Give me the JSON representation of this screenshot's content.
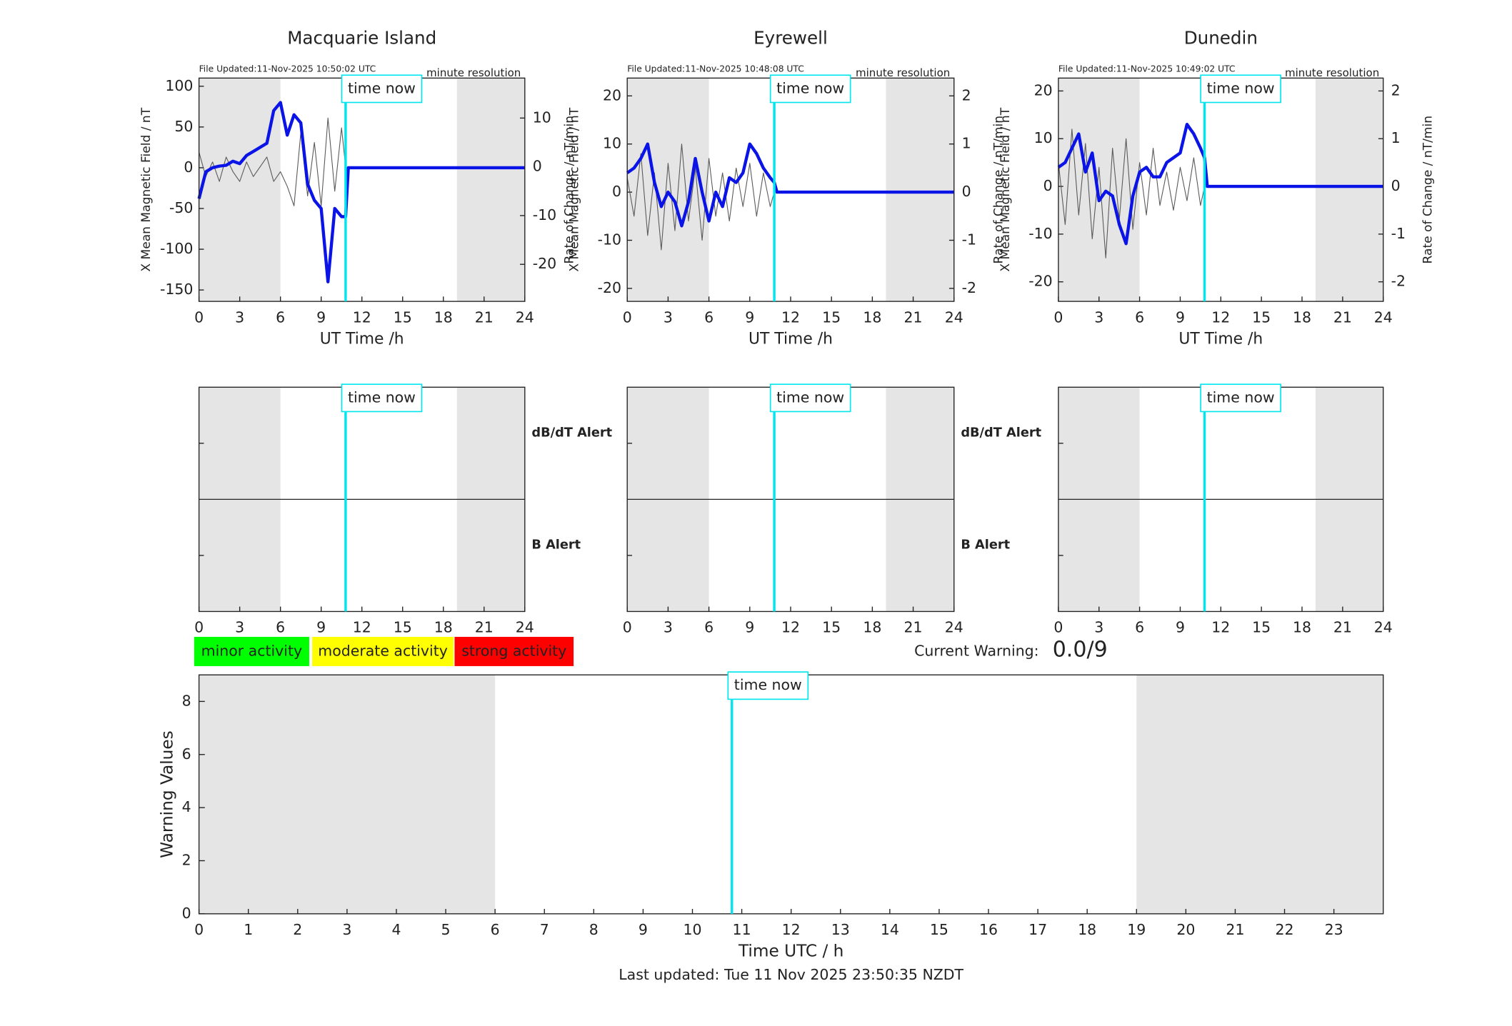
{
  "chart_data": [
    {
      "type": "line",
      "title": "Macquarie Island",
      "subtitle": "File Updated:11-Nov-2025 10:50:02 UTC",
      "note": "minute resolution",
      "xlabel": "UT Time /h",
      "ylabel": "X Mean Magnetic Field / nT",
      "y2label": "Rate of Change / nT/min",
      "xlim": [
        0,
        24
      ],
      "xticks": [
        0,
        3,
        6,
        9,
        12,
        15,
        18,
        21,
        24
      ],
      "ylim": [
        -164,
        110
      ],
      "yticks": [
        -150,
        -100,
        -50,
        0,
        50,
        100
      ],
      "y2lim": [
        -27.6,
        18.2
      ],
      "y2ticks": [
        -20,
        -10,
        0,
        10
      ],
      "shaded": [
        [
          0,
          6
        ],
        [
          19,
          24
        ]
      ],
      "time_now": 10.8,
      "time_now_label": "time now",
      "x": [
        0,
        0.5,
        1,
        1.5,
        2,
        2.5,
        3,
        3.5,
        4,
        4.5,
        5,
        5.5,
        6,
        6.5,
        7,
        7.5,
        8,
        8.5,
        9,
        9.5,
        10,
        10.5,
        10.8,
        11,
        24
      ],
      "series": [
        {
          "color": "#5a5a5a",
          "axis": "y2",
          "values": [
            3,
            -2,
            1,
            -3,
            2,
            -1,
            -3,
            1,
            -2,
            0,
            2,
            -3,
            -1,
            -4,
            -8,
            7,
            -6,
            5,
            -8,
            10,
            -5,
            8,
            0,
            null,
            null
          ]
        },
        {
          "color": "#0a14e6",
          "values": [
            -38,
            -5,
            0,
            2,
            3,
            8,
            5,
            15,
            20,
            25,
            30,
            70,
            80,
            40,
            65,
            55,
            -20,
            -40,
            -50,
            -140,
            -50,
            -60,
            -60,
            0,
            0
          ]
        }
      ]
    },
    {
      "type": "line",
      "title": "Eyrewell",
      "subtitle": "File Updated:11-Nov-2025 10:48:08 UTC",
      "note": "minute resolution",
      "xlabel": "UT Time /h",
      "ylabel": "X Mean Magnetic Field / nT",
      "y2label": "Rate of Change / nT/min",
      "xlim": [
        0,
        24
      ],
      "xticks": [
        0,
        3,
        6,
        9,
        12,
        15,
        18,
        21,
        24
      ],
      "ylim": [
        -22.7,
        23.7
      ],
      "yticks": [
        -20,
        -10,
        0,
        10,
        20
      ],
      "y2lim": [
        -2.27,
        2.37
      ],
      "y2ticks": [
        -2,
        -1,
        0,
        1,
        2
      ],
      "shaded": [
        [
          0,
          6
        ],
        [
          19,
          24
        ]
      ],
      "time_now": 10.8,
      "time_now_label": "time now",
      "x": [
        0,
        0.5,
        1,
        1.5,
        2,
        2.5,
        3,
        3.5,
        4,
        4.5,
        5,
        5.5,
        6,
        6.5,
        7,
        7.5,
        8,
        8.5,
        9,
        9.5,
        10,
        10.5,
        10.8,
        11,
        24
      ],
      "series": [
        {
          "color": "#5a5a5a",
          "axis": "y2",
          "values": [
            0.3,
            -0.5,
            0.8,
            -0.9,
            0.4,
            -1.2,
            0.6,
            -0.8,
            1,
            -0.6,
            0.5,
            -1,
            0.7,
            -0.5,
            0.4,
            -0.6,
            0.5,
            -0.3,
            0.6,
            -0.5,
            0.4,
            -0.3,
            0,
            null,
            null
          ]
        },
        {
          "color": "#0a14e6",
          "values": [
            4,
            5,
            7,
            10,
            2,
            -3,
            0,
            -2,
            -7,
            -2,
            7,
            0,
            -6,
            0,
            -3,
            3,
            2,
            4,
            10,
            8,
            5,
            3,
            2,
            0,
            0
          ]
        }
      ]
    },
    {
      "type": "line",
      "title": "Dunedin",
      "subtitle": "File Updated:11-Nov-2025 10:49:02 UTC",
      "note": "minute resolution",
      "xlabel": "UT Time /h",
      "ylabel": "X Mean Magnetic Field / nT",
      "y2label": "Rate of Change / nT/min",
      "xlim": [
        0,
        24
      ],
      "xticks": [
        0,
        3,
        6,
        9,
        12,
        15,
        18,
        21,
        24
      ],
      "ylim": [
        -24.1,
        22.7
      ],
      "yticks": [
        -20,
        -10,
        0,
        10,
        20
      ],
      "y2lim": [
        -2.41,
        2.27
      ],
      "y2ticks": [
        -2,
        -1,
        0,
        1,
        2
      ],
      "shaded": [
        [
          0,
          6
        ],
        [
          19,
          24
        ]
      ],
      "time_now": 10.8,
      "time_now_label": "time now",
      "x": [
        0,
        0.5,
        1,
        1.5,
        2,
        2.5,
        3,
        3.5,
        4,
        4.5,
        5,
        5.5,
        6,
        6.5,
        7,
        7.5,
        8,
        8.5,
        9,
        9.5,
        10,
        10.5,
        10.8,
        11,
        24
      ],
      "series": [
        {
          "color": "#5a5a5a",
          "axis": "y2",
          "values": [
            0.5,
            -0.8,
            1.2,
            -0.6,
            0.9,
            -1.1,
            0.4,
            -1.5,
            0.8,
            -0.7,
            1,
            -0.9,
            0.5,
            -0.6,
            0.8,
            -0.4,
            0.3,
            -0.5,
            0.4,
            -0.3,
            0.6,
            -0.4,
            0,
            null,
            null
          ]
        },
        {
          "color": "#0a14e6",
          "values": [
            4,
            5,
            8,
            11,
            3,
            7,
            -3,
            -1,
            -2,
            -8,
            -12,
            -2,
            3,
            4,
            2,
            2,
            5,
            6,
            7,
            13,
            11,
            8,
            6,
            0,
            0
          ]
        }
      ]
    },
    {
      "type": "alert",
      "xlim": [
        0,
        24
      ],
      "xticks": [
        0,
        3,
        6,
        9,
        12,
        15,
        18,
        21,
        24
      ],
      "shaded": [
        [
          0,
          6
        ],
        [
          19,
          24
        ]
      ],
      "time_now": 10.8,
      "time_now_label": "time now",
      "upper_label": "dB/dT Alert",
      "lower_label": "B Alert",
      "lower_color": "#0a14e6"
    },
    {
      "type": "alert",
      "xlim": [
        0,
        24
      ],
      "xticks": [
        0,
        3,
        6,
        9,
        12,
        15,
        18,
        21,
        24
      ],
      "shaded": [
        [
          0,
          6
        ],
        [
          19,
          24
        ]
      ],
      "time_now": 10.8,
      "time_now_label": "time now",
      "upper_label": "dB/dT Alert",
      "lower_label": "B Alert",
      "lower_color": "#0a14e6"
    },
    {
      "type": "alert",
      "xlim": [
        0,
        24
      ],
      "xticks": [
        0,
        3,
        6,
        9,
        12,
        15,
        18,
        21,
        24
      ],
      "shaded": [
        [
          0,
          6
        ],
        [
          19,
          24
        ]
      ],
      "time_now": 10.8,
      "time_now_label": "time now"
    },
    {
      "type": "warning",
      "xlabel": "Time UTC / h",
      "ylabel": "Warning Values",
      "xlim": [
        0,
        24
      ],
      "xticks": [
        0,
        1,
        2,
        3,
        4,
        5,
        6,
        7,
        8,
        9,
        10,
        11,
        12,
        13,
        14,
        15,
        16,
        17,
        18,
        19,
        20,
        21,
        22,
        23
      ],
      "ylim": [
        0,
        9
      ],
      "yticks": [
        0,
        2,
        4,
        6,
        8
      ],
      "shaded": [
        [
          0,
          6
        ],
        [
          19,
          24
        ]
      ],
      "time_now": 10.8,
      "time_now_label": "time now",
      "legend": [
        {
          "name": "minor activity",
          "color": "#00ff00"
        },
        {
          "name": "moderate activity",
          "color": "#ffff00"
        },
        {
          "name": "strong activity",
          "color": "#ff0000"
        }
      ],
      "current_warning_label": "Current Warning:",
      "current_warning": "0.0/9"
    }
  ],
  "footer": "Last updated: Tue 11 Nov 2025 23:50:35 NZDT"
}
